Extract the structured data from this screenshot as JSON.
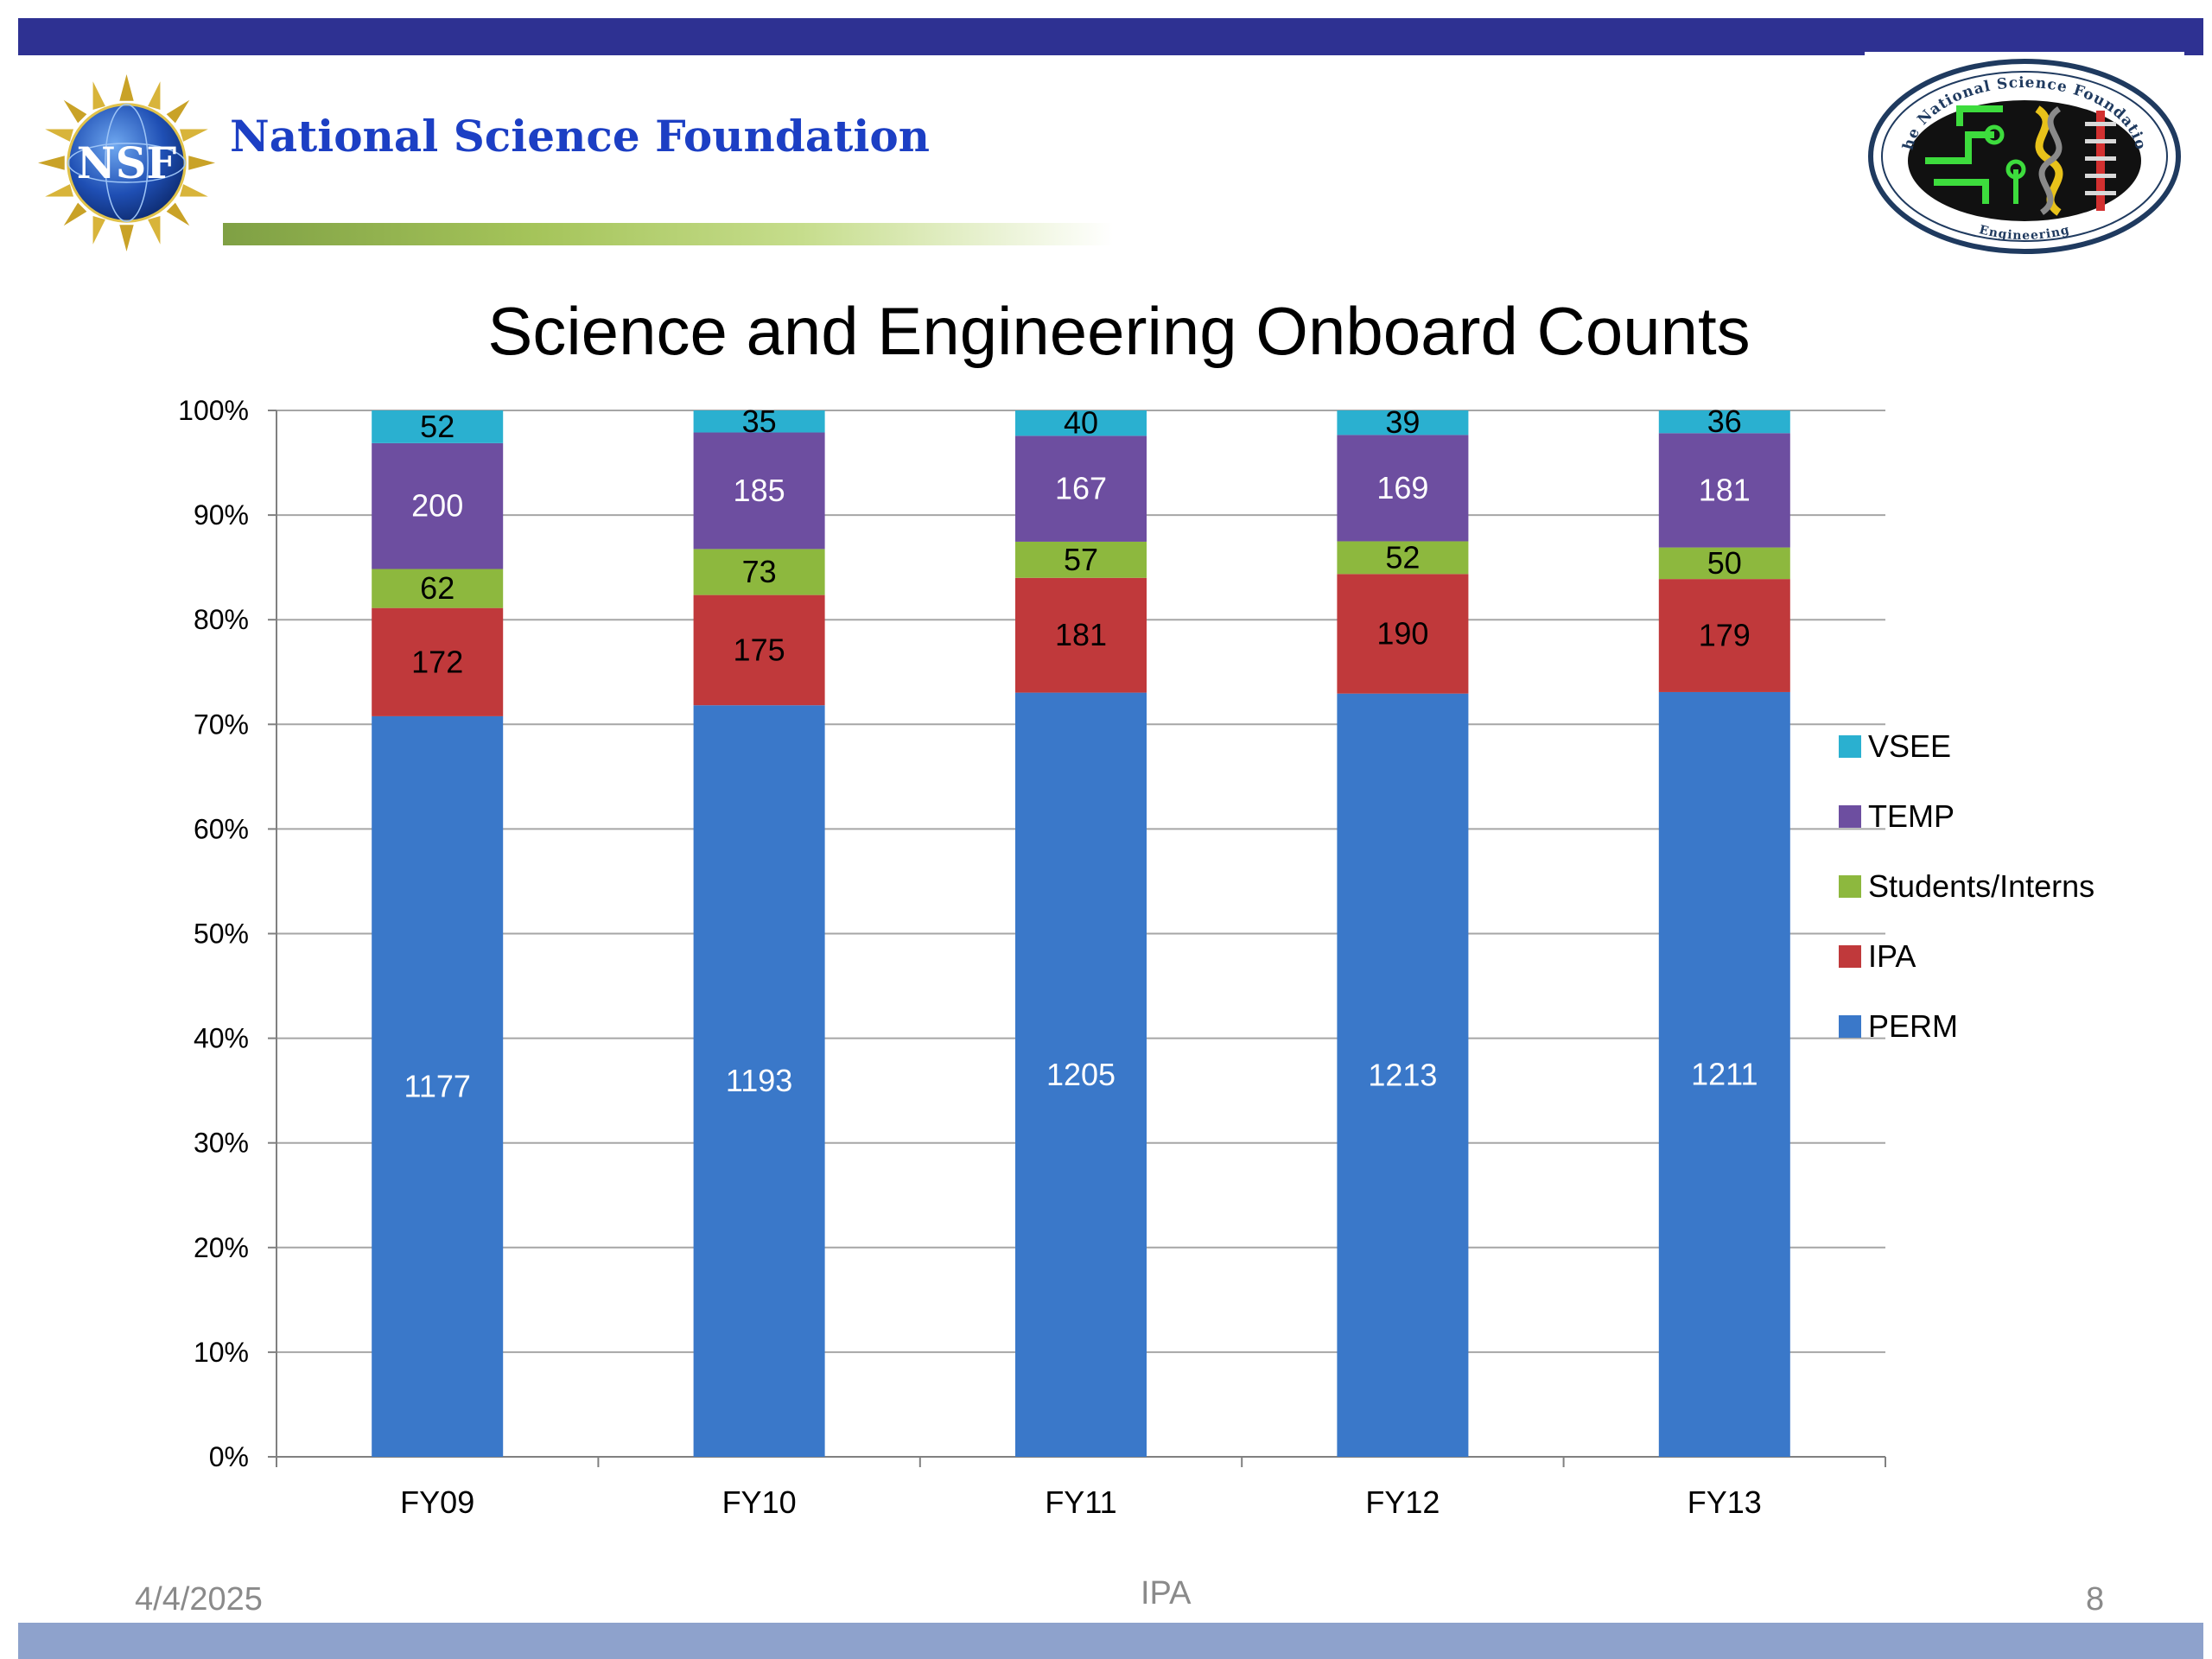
{
  "header": {
    "org_name": "National Science Foundation",
    "logo_text": "NSF",
    "seal_text_top": "The National Science Foundation",
    "seal_text_bottom": "Engineering"
  },
  "slide": {
    "title": "Science and Engineering Onboard Counts"
  },
  "footer": {
    "date": "4/4/2025",
    "center_text": "IPA",
    "page_number": "8"
  },
  "colors": {
    "top_bar": "#2e3192",
    "bottom_bar": "#8ea2cc",
    "org_name": "#1c3fc4"
  },
  "chart_data": {
    "type": "bar",
    "stacked": true,
    "normalized": true,
    "title": "Science and Engineering Onboard Counts",
    "xlabel": "",
    "ylabel": "",
    "categories": [
      "FY09",
      "FY10",
      "FY11",
      "FY12",
      "FY13"
    ],
    "ylim": [
      0,
      100
    ],
    "yticks": [
      "0%",
      "10%",
      "20%",
      "30%",
      "40%",
      "50%",
      "60%",
      "70%",
      "80%",
      "90%",
      "100%"
    ],
    "grid": true,
    "legend_position": "right",
    "series": [
      {
        "name": "PERM",
        "color": "#3a78c9",
        "label_color": "#ffffff",
        "values": [
          1177,
          1193,
          1205,
          1213,
          1211
        ]
      },
      {
        "name": "IPA",
        "color": "#c0393b",
        "label_color": "#000000",
        "values": [
          172,
          175,
          181,
          190,
          179
        ]
      },
      {
        "name": "Students/Interns",
        "color": "#8db83e",
        "label_color": "#000000",
        "values": [
          62,
          73,
          57,
          52,
          50
        ]
      },
      {
        "name": "TEMP",
        "color": "#6d4ea0",
        "label_color": "#ffffff",
        "values": [
          200,
          185,
          167,
          169,
          181
        ]
      },
      {
        "name": "VSEE",
        "color": "#2ab0d0",
        "label_color": "#000000",
        "values": [
          52,
          35,
          40,
          39,
          36
        ]
      }
    ]
  }
}
